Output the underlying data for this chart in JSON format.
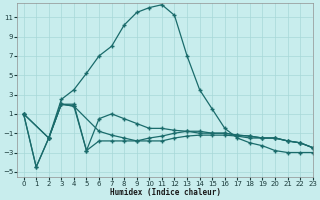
{
  "xlabel": "Humidex (Indice chaleur)",
  "xlim": [
    -0.5,
    23
  ],
  "ylim": [
    -5.5,
    12.5
  ],
  "yticks": [
    -5,
    -3,
    -1,
    1,
    3,
    5,
    7,
    9,
    11
  ],
  "xticks": [
    0,
    1,
    2,
    3,
    4,
    5,
    6,
    7,
    8,
    9,
    10,
    11,
    12,
    13,
    14,
    15,
    16,
    17,
    18,
    19,
    20,
    21,
    22,
    23
  ],
  "bg_color": "#c8eded",
  "grid_color": "#a8d8d8",
  "line_color": "#1a6b6b",
  "line1_x": [
    0,
    1,
    2,
    3,
    4,
    5,
    6,
    7,
    8,
    9,
    10,
    11,
    12,
    13,
    14,
    15,
    16,
    17,
    18,
    19,
    20,
    21,
    22,
    23
  ],
  "line1_y": [
    1.0,
    -4.5,
    -1.5,
    2.5,
    3.5,
    5.2,
    7.0,
    8.0,
    10.2,
    11.5,
    12.0,
    12.3,
    11.2,
    7.0,
    3.5,
    1.5,
    -0.5,
    -1.5,
    -2.0,
    -2.3,
    -2.8,
    -3.0,
    -3.0,
    -3.0
  ],
  "line2_x": [
    0,
    1,
    2,
    3,
    4,
    5,
    6,
    7,
    8,
    9,
    10,
    11,
    12,
    13,
    14,
    15,
    16,
    17,
    18,
    19,
    20,
    21,
    22,
    23
  ],
  "line2_y": [
    1.0,
    -4.5,
    -1.5,
    2.0,
    2.0,
    -2.8,
    0.5,
    1.0,
    0.5,
    0.0,
    -0.5,
    -0.5,
    -0.7,
    -0.8,
    -1.0,
    -1.0,
    -1.0,
    -1.2,
    -1.3,
    -1.5,
    -1.5,
    -1.8,
    -2.0,
    -2.5
  ],
  "line3_x": [
    0,
    2,
    3,
    4,
    5,
    6,
    7,
    8,
    9,
    10,
    11,
    12,
    13,
    14,
    15,
    16,
    17,
    18,
    19,
    20,
    21,
    22,
    23
  ],
  "line3_y": [
    1.0,
    -1.5,
    2.0,
    1.8,
    -2.8,
    -1.8,
    -1.8,
    -1.8,
    -1.8,
    -1.5,
    -1.3,
    -1.0,
    -0.8,
    -0.8,
    -1.0,
    -1.0,
    -1.2,
    -1.3,
    -1.5,
    -1.5,
    -1.8,
    -2.0,
    -2.5
  ],
  "line4_x": [
    0,
    2,
    3,
    4,
    6,
    7,
    8,
    9,
    10,
    11,
    12,
    13,
    14,
    15,
    16,
    17,
    18,
    19,
    20,
    21,
    22,
    23
  ],
  "line4_y": [
    1.0,
    -1.5,
    2.0,
    1.8,
    -0.8,
    -1.2,
    -1.5,
    -1.8,
    -1.8,
    -1.8,
    -1.5,
    -1.3,
    -1.2,
    -1.2,
    -1.2,
    -1.3,
    -1.5,
    -1.5,
    -1.5,
    -1.8,
    -2.0,
    -2.5
  ]
}
